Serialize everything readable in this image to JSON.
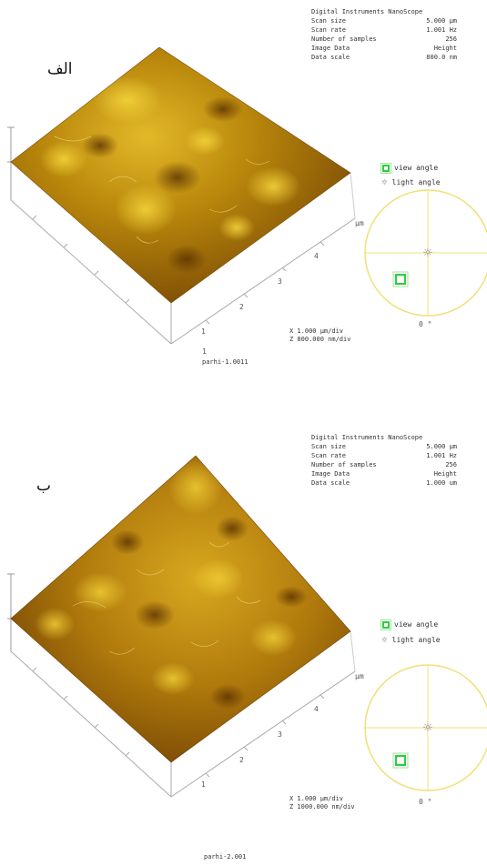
{
  "panels": [
    {
      "label": "الف",
      "info": {
        "header": "Digital Instruments NanoScope",
        "rows": [
          {
            "k": "Scan size",
            "v": "5.000 µm"
          },
          {
            "k": "Scan rate",
            "v": "1.001 Hz"
          },
          {
            "k": "Number of samples",
            "v": "256"
          },
          {
            "k": "Image Data",
            "v": "Height"
          },
          {
            "k": "Data scale",
            "v": "800.0 nm"
          }
        ]
      },
      "legend": {
        "view": "view angle",
        "light": "light angle"
      },
      "axis_unit": "µm",
      "ticks": [
        "1",
        "2",
        "3",
        "4"
      ],
      "corner_tick": "1",
      "angle": "0 °",
      "scale_x": "X 1.000 µm/div",
      "scale_z": "Z 800.000 nm/div",
      "filename": "parhi-1.0011",
      "colors": {
        "surface_dark": "#6b3d00",
        "surface_mid": "#b8860b",
        "surface_light": "#e8c12a",
        "circle": "#f0e07a",
        "marker": "#2ecc40"
      }
    },
    {
      "label": "ب",
      "info": {
        "header": "Digital Instruments NanoScope",
        "rows": [
          {
            "k": "Scan size",
            "v": "5.000 µm"
          },
          {
            "k": "Scan rate",
            "v": "1.001 Hz"
          },
          {
            "k": "Number of samples",
            "v": "256"
          },
          {
            "k": "Image Data",
            "v": "Height"
          },
          {
            "k": "Data scale",
            "v": "1.000 um"
          }
        ]
      },
      "legend": {
        "view": "view angle",
        "light": "light angle"
      },
      "axis_unit": "µm",
      "ticks": [
        "1",
        "2",
        "3",
        "4"
      ],
      "corner_tick": "",
      "angle": "0 °",
      "scale_x": "X 1.000 µm/div",
      "scale_z": "Z 1000.000 nm/div",
      "filename": "parhi-2.001",
      "colors": {
        "surface_dark": "#6b3d00",
        "surface_mid": "#b8860b",
        "surface_light": "#e8c12a",
        "circle": "#f0e07a",
        "marker": "#2ecc40"
      }
    }
  ]
}
